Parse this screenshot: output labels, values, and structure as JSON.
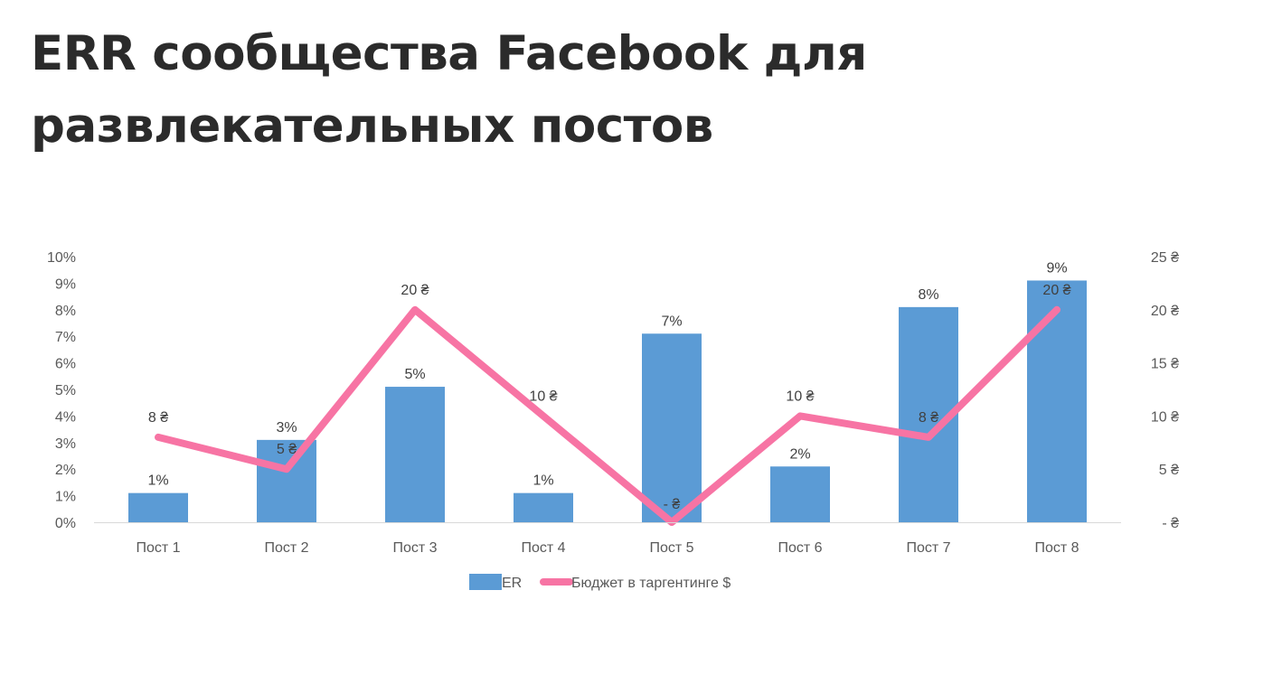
{
  "page": {
    "title": "ERR сообщества Facebook для развлекательных постов"
  },
  "chart_data": {
    "type": "bar",
    "categories": [
      "Пост 1",
      "Пост 2",
      "Пост 3",
      "Пост 4",
      "Пост 5",
      "Пост 6",
      "Пост 7",
      "Пост 8"
    ],
    "series": [
      {
        "name": "ER",
        "type": "bar",
        "axis": "left",
        "values": [
          0.011,
          0.031,
          0.051,
          0.011,
          0.071,
          0.021,
          0.081,
          0.091
        ],
        "labels": [
          "1%",
          "3%",
          "5%",
          "1%",
          "7%",
          "2%",
          "8%",
          "9%"
        ],
        "color": "#5b9bd5"
      },
      {
        "name": "Бюджет в таргентинге $",
        "type": "line",
        "axis": "right",
        "values": [
          8,
          5,
          20,
          10,
          0,
          10,
          8,
          20
        ],
        "labels": [
          "8 ₴",
          "5 ₴",
          "20 ₴",
          "10 ₴",
          "-   ₴",
          "10 ₴",
          "8 ₴",
          "20 ₴"
        ],
        "color": "#f774a4"
      }
    ],
    "y_left": {
      "ylim": [
        0,
        0.1
      ],
      "ticks": [
        0,
        0.01,
        0.02,
        0.03,
        0.04,
        0.05,
        0.06,
        0.07,
        0.08,
        0.09,
        0.1
      ],
      "tick_labels": [
        "0%",
        "1%",
        "2%",
        "3%",
        "4%",
        "5%",
        "6%",
        "7%",
        "8%",
        "9%",
        "10%"
      ]
    },
    "y_right": {
      "ylim": [
        0,
        25
      ],
      "ticks": [
        0,
        5,
        10,
        15,
        20,
        25
      ],
      "tick_labels": [
        "-   ₴",
        "5 ₴",
        "10 ₴",
        "15 ₴",
        "20 ₴",
        "25 ₴"
      ]
    },
    "grid": false,
    "legend": "bottom"
  }
}
